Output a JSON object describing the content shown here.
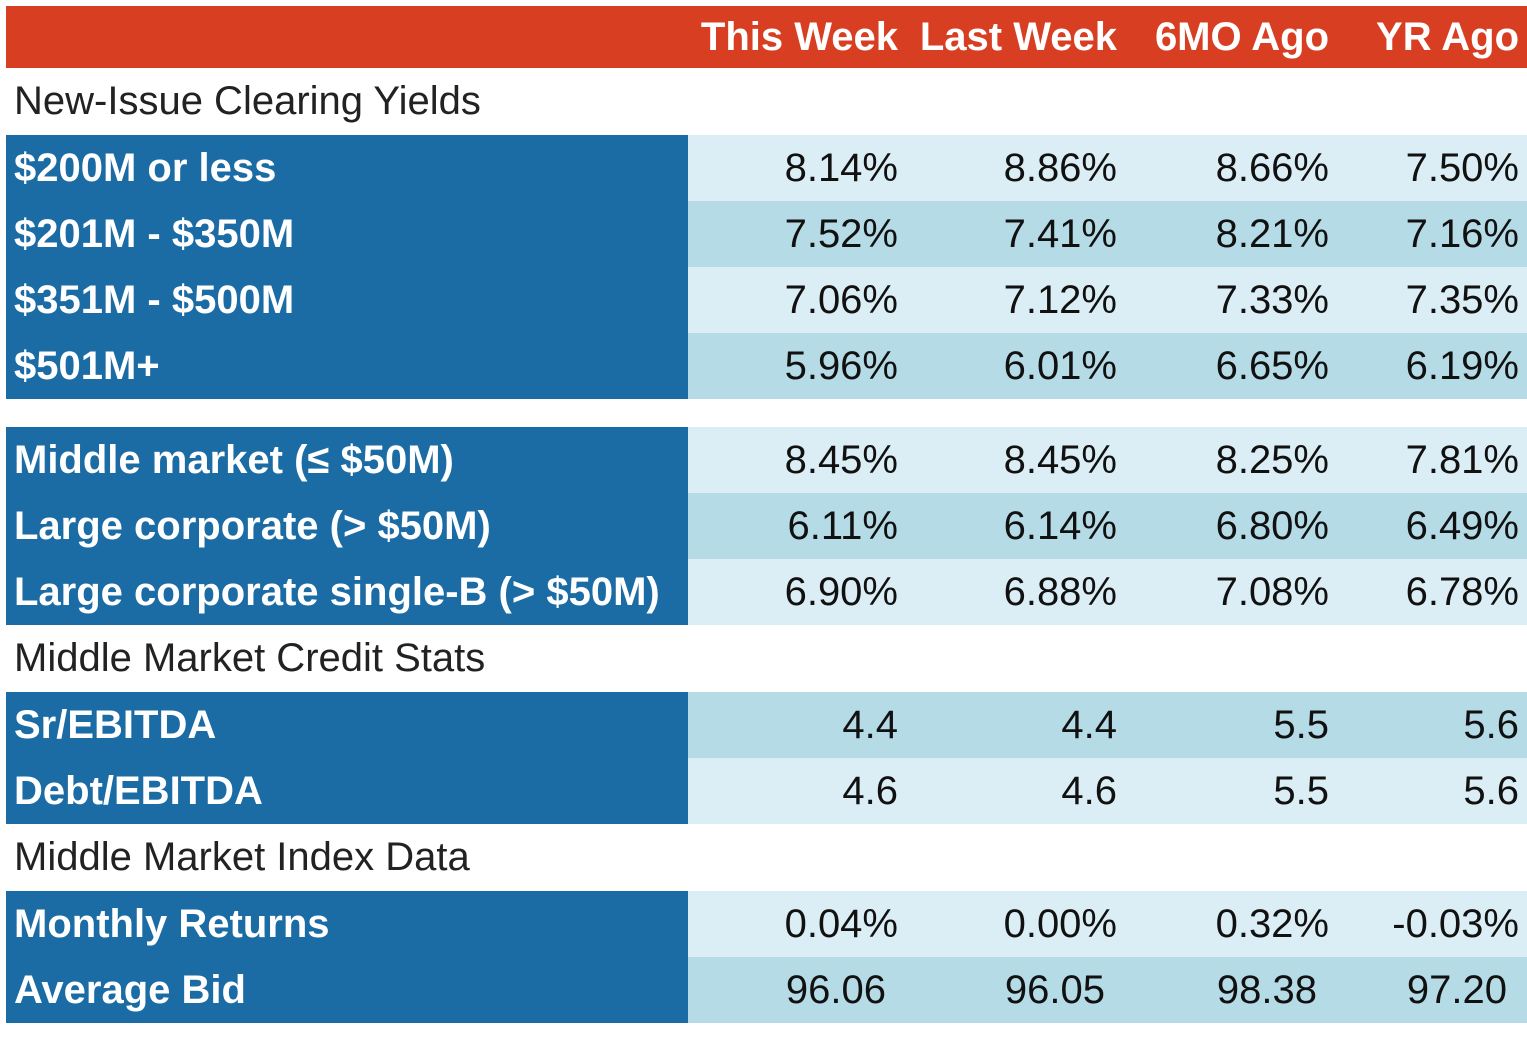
{
  "header": {
    "columns": [
      "This Week",
      "Last Week",
      "6MO Ago",
      "YR Ago"
    ]
  },
  "sections": {
    "new_issue": {
      "title": "New-Issue Clearing Yields",
      "rows": [
        {
          "label": "$200M or less",
          "values": [
            "8.14%",
            "8.86%",
            "8.66%",
            "7.50%"
          ]
        },
        {
          "label": "$201M - $350M",
          "values": [
            "7.52%",
            "7.41%",
            "8.21%",
            "7.16%"
          ]
        },
        {
          "label": "$351M - $500M",
          "values": [
            "7.06%",
            "7.12%",
            "7.33%",
            "7.35%"
          ]
        },
        {
          "label": "$501M+",
          "values": [
            "5.96%",
            "6.01%",
            "6.65%",
            "6.19%"
          ]
        }
      ]
    },
    "segments": {
      "rows": [
        {
          "label": "Middle market (≤ $50M)",
          "values": [
            "8.45%",
            "8.45%",
            "8.25%",
            "7.81%"
          ]
        },
        {
          "label": "Large corporate (> $50M)",
          "values": [
            "6.11%",
            "6.14%",
            "6.80%",
            "6.49%"
          ]
        },
        {
          "label": "Large corporate single-B (> $50M)",
          "values": [
            "6.90%",
            "6.88%",
            "7.08%",
            "6.78%"
          ]
        }
      ]
    },
    "credit_stats": {
      "title": "Middle Market Credit Stats",
      "rows": [
        {
          "label": "Sr/EBITDA",
          "values": [
            "4.4",
            "4.4",
            "5.5",
            "5.6"
          ]
        },
        {
          "label": "Debt/EBITDA",
          "values": [
            "4.6",
            "4.6",
            "5.5",
            "5.6"
          ]
        }
      ]
    },
    "index_data": {
      "title": "Middle Market Index Data",
      "rows": [
        {
          "label": "Monthly Returns",
          "values": [
            "0.04%",
            "0.00%",
            "0.32%",
            "-0.03%"
          ]
        },
        {
          "label": "Average Bid",
          "values": [
            "96.06",
            "96.05",
            "98.38",
            "97.20"
          ]
        }
      ]
    }
  },
  "colors": {
    "header_bg": "#d83f22",
    "label_bg": "#1b6ba4",
    "row_light": "#dceef5",
    "row_dark": "#b5dbe6"
  }
}
